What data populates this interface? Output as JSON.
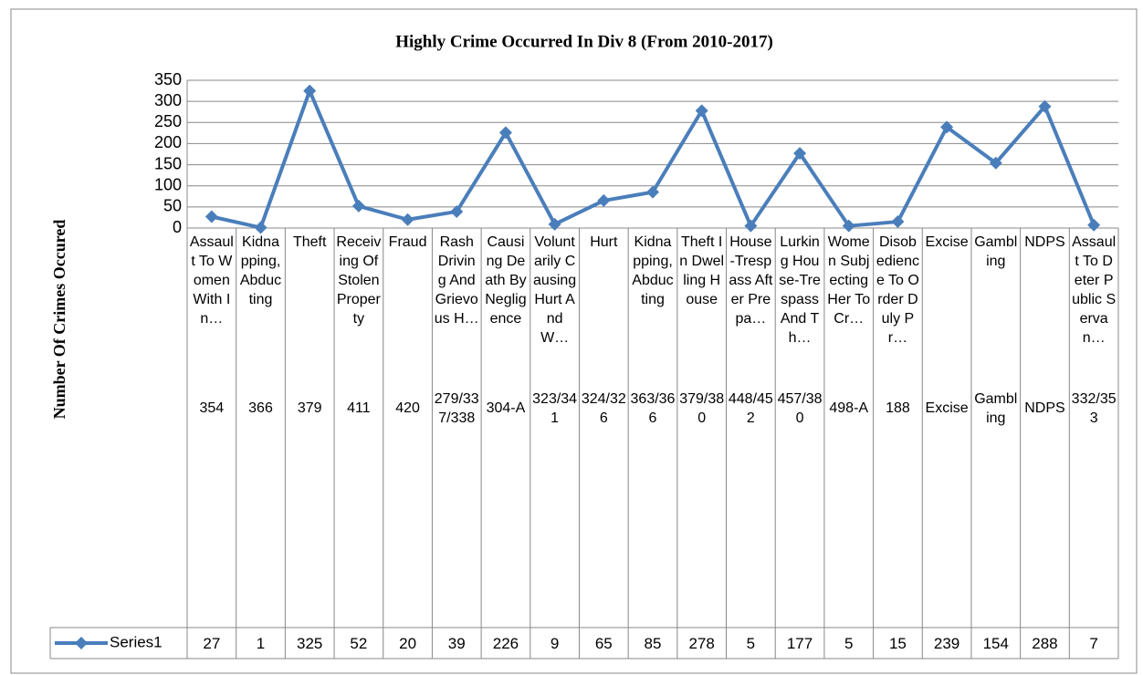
{
  "chart_data": {
    "type": "line",
    "title": "Highly Crime Occurred In Div 8 (From 2010-2017)",
    "y_label": "Number Of Crimes Occured",
    "categories": [
      "Assault To Women With In…",
      "Kidnapping, Abducting",
      "Theft",
      "Receiving Of Stolen Property",
      "Fraud",
      "Rash Driving And Grievous H…",
      "Causing Death By Negligence",
      "Voluntarily Causing Hurt And W…",
      "Hurt",
      "Kidnapping, Abducting",
      "Theft In Dwelling House",
      "House-Trespass After Prepa…",
      "Lurking House-Trespass And Th…",
      "Women Subjecting Her To Cr…",
      "Disobedience To Order Duly Pr…",
      "Excise",
      "Gambling",
      "NDPS",
      "Assault To Deter Public Servan…"
    ],
    "category_groups": [
      "354",
      "366",
      "379",
      "411",
      "420",
      "279/337/338",
      "304-A",
      "323/341",
      "324/326",
      "363/366",
      "379/380",
      "448/452",
      "457/380",
      "498-A",
      "188",
      "Excise",
      "Gambling",
      "NDPS",
      "332/353"
    ],
    "series": [
      {
        "name": "Series1",
        "color": "#4a7ebb",
        "values": [
          27,
          1,
          325,
          52,
          20,
          39,
          226,
          9,
          65,
          85,
          278,
          5,
          177,
          5,
          15,
          239,
          154,
          288,
          7
        ]
      }
    ],
    "ylim": [
      0,
      350
    ],
    "yticks": [
      0,
      50,
      100,
      150,
      200,
      250,
      300,
      350
    ],
    "grid": true
  }
}
